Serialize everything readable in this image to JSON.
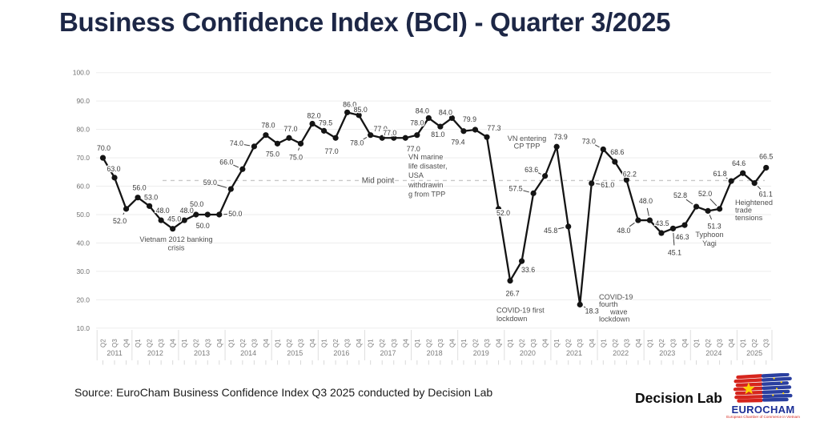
{
  "footer": {
    "source": "Source: EuroCham Business Confidence Index Q3 2025 conducted by Decision Lab",
    "decision_lab": "Decision Lab",
    "eurocham": {
      "name": "EUROCHAM",
      "tagline": "European Chamber of Commerce in Vietnam"
    }
  },
  "colors": {
    "title": "#1d2746",
    "line": "#141414",
    "data_label": "#383838",
    "axis_label": "#6f6f6f",
    "annotation": "#4e4e4e",
    "grid": "#ededed",
    "mid_line": "#c8c8c8",
    "eurocham_blue": "#1c2f96",
    "eurocham_red": "#d6251d",
    "star_yellow": "#ffd100"
  },
  "chart_data": {
    "type": "line",
    "title": "Business Confidence Index (BCI) - Quarter 3/2025",
    "xlabel": "",
    "ylabel": "",
    "ylim": [
      10,
      100
    ],
    "grid": "horizontal",
    "legend": "none",
    "yticks": [
      "100.0",
      "90.0",
      "80.0",
      "70.0",
      "60.0",
      "50.0",
      "40.0",
      "30.0",
      "20.0",
      "10.0"
    ],
    "midpoint": {
      "value": 62,
      "label": "Mid point",
      "label_x": 472,
      "label_y": 228.5
    },
    "years": [
      {
        "label": "2011",
        "quarters": [
          "Q2",
          "Q3",
          "Q4"
        ]
      },
      {
        "label": "2012",
        "quarters": [
          "Q1",
          "Q2",
          "Q3",
          "Q4"
        ]
      },
      {
        "label": "2013",
        "quarters": [
          "Q1",
          "Q2",
          "Q3",
          "Q4"
        ]
      },
      {
        "label": "2014",
        "quarters": [
          "Q1",
          "Q2",
          "Q3",
          "Q4"
        ]
      },
      {
        "label": "2015",
        "quarters": [
          "Q1",
          "Q2",
          "Q3",
          "Q4"
        ]
      },
      {
        "label": "2016",
        "quarters": [
          "Q1",
          "Q2",
          "Q3",
          "Q4"
        ]
      },
      {
        "label": "2017",
        "quarters": [
          "Q1",
          "Q2",
          "Q3",
          "Q4"
        ]
      },
      {
        "label": "2018",
        "quarters": [
          "Q1",
          "Q2",
          "Q3",
          "Q4"
        ]
      },
      {
        "label": "2019",
        "quarters": [
          "Q1",
          "Q2",
          "Q3",
          "Q4"
        ]
      },
      {
        "label": "2020",
        "quarters": [
          "Q1",
          "Q2",
          "Q3",
          "Q4"
        ]
      },
      {
        "label": "2021",
        "quarters": [
          "Q1",
          "Q2",
          "Q3",
          "Q4"
        ]
      },
      {
        "label": "2022",
        "quarters": [
          "Q1",
          "Q2",
          "Q3",
          "Q4"
        ]
      },
      {
        "label": "2023",
        "quarters": [
          "Q1",
          "Q2",
          "Q3",
          "Q4"
        ]
      },
      {
        "label": "2024",
        "quarters": [
          "Q1",
          "Q2",
          "Q3",
          "Q4"
        ]
      },
      {
        "label": "2025",
        "quarters": [
          "Q1",
          "Q2",
          "Q3"
        ]
      }
    ],
    "series": [
      {
        "name": "BCI",
        "points": [
          {
            "q": "Q2 2011",
            "v": 70.0,
            "l": "70.0",
            "ox": 1,
            "oy": -12
          },
          {
            "q": "Q3 2011",
            "v": 63.0,
            "l": "63.0",
            "ox": -1,
            "oy": -11
          },
          {
            "q": "Q4 2011",
            "v": 52.0,
            "l": "52.0",
            "ox": -8,
            "oy": 15,
            "ldr": true
          },
          {
            "q": "Q1 2012",
            "v": 56.0,
            "l": "56.0",
            "ox": 2,
            "oy": -12
          },
          {
            "q": "Q2 2012",
            "v": 53.0,
            "l": "53.0",
            "ox": 2,
            "oy": -11
          },
          {
            "q": "Q3 2012",
            "v": 48.0,
            "l": "48.0",
            "ox": 2,
            "oy": -12
          },
          {
            "q": "Q4 2012",
            "v": 45.0,
            "l": "45.0",
            "ox": 2,
            "oy": -12
          },
          {
            "q": "Q1 2013",
            "v": 48.0,
            "l": "48.0",
            "ox": 3,
            "oy": -12
          },
          {
            "q": "Q2 2013",
            "v": 50.0,
            "l": "50.0",
            "ox": 1,
            "oy": -13
          },
          {
            "q": "Q3 2013",
            "v": 50.0,
            "l": "50.0",
            "ox": -6,
            "oy": 14
          },
          {
            "q": "Q4 2013",
            "v": 50.0,
            "l": "50.0",
            "ox": 20,
            "oy": -1,
            "ldr": true
          },
          {
            "q": "Q1 2014",
            "v": 59.0,
            "l": "59.0",
            "ox": -26,
            "oy": -8,
            "ldr": true
          },
          {
            "q": "Q2 2014",
            "v": 66.0,
            "l": "66.0",
            "ox": -20,
            "oy": -9,
            "ldr": true
          },
          {
            "q": "Q3 2014",
            "v": 74.0,
            "l": "74.0",
            "ox": -22,
            "oy": -4,
            "ldr": true
          },
          {
            "q": "Q4 2014",
            "v": 78.0,
            "l": "78.0",
            "ox": 3,
            "oy": -12
          },
          {
            "q": "Q1 2015",
            "v": 75.0,
            "l": "75.0",
            "ox": -6,
            "oy": 13
          },
          {
            "q": "Q2 2015",
            "v": 77.0,
            "l": "77.0",
            "ox": 2,
            "oy": -11
          },
          {
            "q": "Q3 2015",
            "v": 75.0,
            "l": "75.0",
            "ox": -6,
            "oy": 17,
            "ldr": true
          },
          {
            "q": "Q4 2015",
            "v": 82.0,
            "l": "82.0",
            "ox": 2,
            "oy": -10
          },
          {
            "q": "Q1 2016",
            "v": 79.5,
            "l": "79.5",
            "ox": 2,
            "oy": -10
          },
          {
            "q": "Q2 2016",
            "v": 77.0,
            "l": "77.0",
            "ox": -5,
            "oy": 17
          },
          {
            "q": "Q3 2016",
            "v": 86.0,
            "l": "86.0",
            "ox": 3,
            "oy": -10
          },
          {
            "q": "Q4 2016",
            "v": 85.0,
            "l": "85.0",
            "ox": 2,
            "oy": -7
          },
          {
            "q": "Q1 2017",
            "v": 78.0,
            "l": "78.0",
            "ox": -17,
            "oy": 10,
            "ldr": true
          },
          {
            "q": "Q2 2017",
            "v": 77.0,
            "l": "77.0",
            "ox": -2,
            "oy": -11
          },
          {
            "q": "Q3 2017",
            "v": 77.0,
            "l": "77.0",
            "ox": -5,
            "oy": -6
          },
          {
            "q": "Q4 2017",
            "v": 77.0,
            "l": "77.0",
            "ox": 10,
            "oy": 14
          },
          {
            "q": "Q1 2018",
            "v": 78.0,
            "l": "78.0",
            "ox": 0,
            "oy": -15
          },
          {
            "q": "Q2 2018",
            "v": 84.0,
            "l": "84.0",
            "ox": -8,
            "oy": -9
          },
          {
            "q": "Q3 2018",
            "v": 81.0,
            "l": "81.0",
            "ox": -3,
            "oy": 10
          },
          {
            "q": "Q4 2018",
            "v": 84.0,
            "l": "84.0",
            "ox": -8,
            "oy": -7
          },
          {
            "q": "Q1 2019",
            "v": 79.4,
            "l": "79.4",
            "ox": -7,
            "oy": 14
          },
          {
            "q": "Q2 2019",
            "v": 79.9,
            "l": "79.9",
            "ox": -7,
            "oy": -13
          },
          {
            "q": "Q3 2019",
            "v": 77.3,
            "l": "77.3",
            "ox": 9,
            "oy": -11
          },
          {
            "q": "Q4 2019",
            "v": 52.0,
            "l": "52.0",
            "ox": 6,
            "oy": 5
          },
          {
            "q": "Q1 2020",
            "v": 26.7,
            "l": "26.7",
            "ox": 3,
            "oy": 16
          },
          {
            "q": "Q2 2020",
            "v": 33.6,
            "l": "33.6",
            "ox": 8,
            "oy": 11
          },
          {
            "q": "Q3 2020",
            "v": 57.5,
            "l": "57.5",
            "ox": -22,
            "oy": -6,
            "ldr": true
          },
          {
            "q": "Q4 2020",
            "v": 63.6,
            "l": "63.6",
            "ox": -17,
            "oy": -8,
            "ldr": true
          },
          {
            "q": "Q1 2021",
            "v": 73.9,
            "l": "73.9",
            "ox": 5,
            "oy": -12
          },
          {
            "q": "Q2 2021",
            "v": 45.8,
            "l": "45.8",
            "ox": -22,
            "oy": 5,
            "ldr": true
          },
          {
            "q": "Q3 2021",
            "v": 18.3,
            "l": "18.3",
            "ox": 15,
            "oy": 8,
            "ldr": true
          },
          {
            "q": "Q4 2021",
            "v": 61.0,
            "l": "61.0",
            "ox": 20,
            "oy": 2,
            "ldr": true
          },
          {
            "q": "Q1 2022",
            "v": 73.0,
            "l": "73.0",
            "ox": -18,
            "oy": -10,
            "ldr": true
          },
          {
            "q": "Q2 2022",
            "v": 68.6,
            "l": "68.6",
            "ox": 3,
            "oy": -12
          },
          {
            "q": "Q3 2022",
            "v": 62.2,
            "l": "62.2",
            "ox": 4,
            "oy": -7
          },
          {
            "q": "Q4 2022",
            "v": 48.0,
            "l": "48.0",
            "ox": -18,
            "oy": 13,
            "ldr": true
          },
          {
            "q": "Q1 2023",
            "v": 48.0,
            "l": "48.0",
            "ox": -5,
            "oy": -24,
            "ldr": true
          },
          {
            "q": "Q2 2023",
            "v": 43.5,
            "l": "43.5",
            "ox": 1,
            "oy": -12
          },
          {
            "q": "Q3 2023",
            "v": 45.1,
            "l": "45.1",
            "ox": 2,
            "oy": 30,
            "ldr": true
          },
          {
            "q": "Q4 2023",
            "v": 46.3,
            "l": "46.3",
            "ox": -3,
            "oy": 15,
            "ldr": true
          },
          {
            "q": "Q1 2024",
            "v": 52.8,
            "l": "52.8",
            "ox": -20,
            "oy": -14,
            "ldr": true
          },
          {
            "q": "Q2 2024",
            "v": 51.3,
            "l": "51.3",
            "ox": 8,
            "oy": 19,
            "ldr": true
          },
          {
            "q": "Q3 2024",
            "v": 52.0,
            "l": "52.0",
            "ox": -18,
            "oy": -19,
            "ldr": true
          },
          {
            "q": "Q4 2024",
            "v": 61.8,
            "l": "61.8",
            "ox": -14,
            "oy": -9,
            "ldr": true
          },
          {
            "q": "Q1 2025",
            "v": 64.6,
            "l": "64.6",
            "ox": -5,
            "oy": -12
          },
          {
            "q": "Q2 2025",
            "v": 61.1,
            "l": "61.1",
            "ox": 14,
            "oy": 14,
            "ldr": true
          },
          {
            "q": "Q3 2025",
            "v": 66.5,
            "l": "66.5",
            "ox": 0,
            "oy": -14
          }
        ]
      }
    ],
    "annotations": [
      {
        "lines": [
          "Vietnam 2012 banking",
          "crisis"
        ],
        "x": 220,
        "y": 302,
        "lh": 10.5,
        "align": "center"
      },
      {
        "lines": [
          "VN marine",
          "life disaster,",
          "USA",
          "withdrawin",
          "g from TPP"
        ],
        "x": 510,
        "y": 199,
        "lh": 11.6,
        "align": "left"
      },
      {
        "lines": [
          "VN entering",
          "CP TPP"
        ],
        "x": 658,
        "y": 176,
        "lh": 9.6,
        "align": "center"
      },
      {
        "lines": [
          "COVID-19 first",
          "lockdown"
        ],
        "x": 620,
        "y": 390.5,
        "lh": 10.5,
        "align": "left"
      },
      {
        "lines": [
          "COVID-19",
          "fourth",
          "wave",
          "lockdown"
        ],
        "x": 748,
        "y": 374,
        "lh": 9.2,
        "align": "left",
        "indents": [
          0,
          0,
          14,
          0
        ]
      },
      {
        "lines": [
          "Typhoon",
          "Yagi"
        ],
        "x": 886,
        "y": 296,
        "lh": 11,
        "align": "center"
      },
      {
        "lines": [
          "Heightened",
          "trade",
          "tensions"
        ],
        "x": 918,
        "y": 256,
        "lh": 9.6,
        "align": "left"
      }
    ]
  }
}
